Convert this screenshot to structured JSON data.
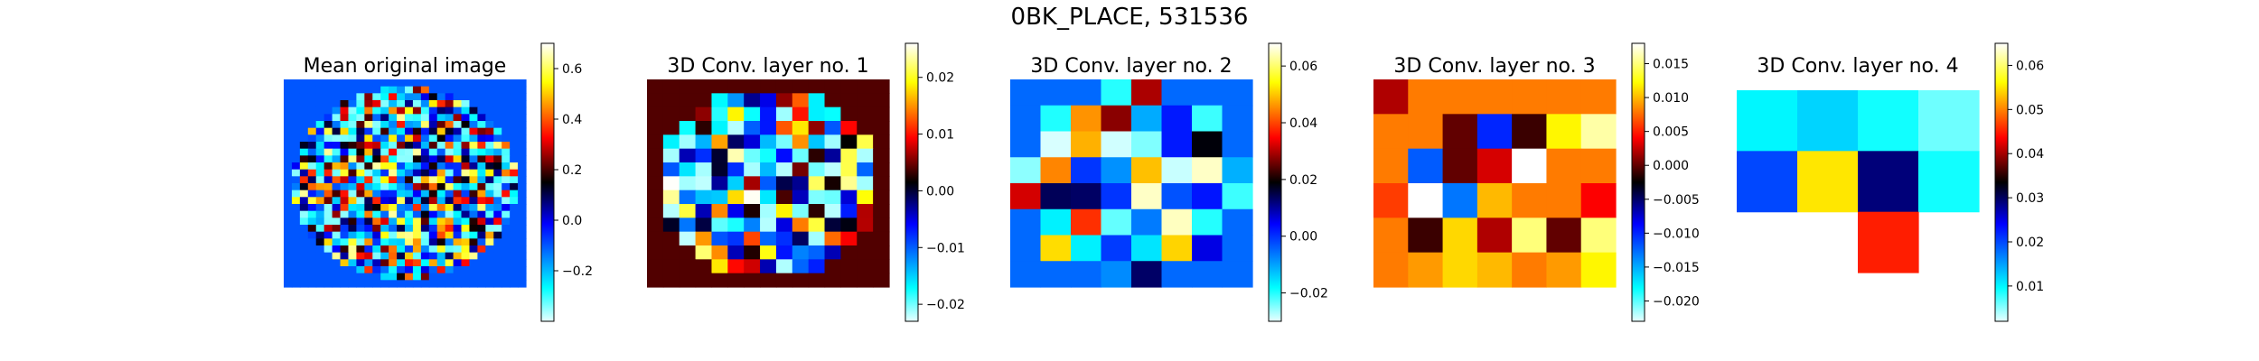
{
  "figure": {
    "suptitle": "0BK_PLACE, 531536"
  },
  "colormap": {
    "name": "custom-cyan-blue-black-red-yellow-white",
    "stops": [
      "#e9ffff",
      "#00ffff",
      "#0000ff",
      "#000000",
      "#ff0000",
      "#ffff00",
      "#ffffff"
    ],
    "stop_positions": [
      0,
      0.12,
      0.35,
      0.5,
      0.66,
      0.86,
      1
    ],
    "background_blue": "#0b2ed6"
  },
  "chart_data": [
    {
      "type": "heatmap",
      "title": "Mean original image",
      "colorbar": {
        "ticks": [
          -0.2,
          0.0,
          0.2,
          0.4,
          0.6
        ],
        "tick_labels": [
          "−0.2",
          "0.0",
          "0.2",
          "0.4",
          "0.6"
        ],
        "range": [
          -0.4,
          0.7
        ]
      },
      "grid_note": "circular sampled region, approx. 30x30 cells",
      "grid": {
        "rows": 30,
        "cols": 30,
        "mask": "circle",
        "background_value": -0.1,
        "seed": 11,
        "value_range": [
          -0.35,
          0.65
        ]
      }
    },
    {
      "type": "heatmap",
      "title": "3D Conv. layer no. 1",
      "colorbar": {
        "ticks": [
          -0.02,
          -0.01,
          0.0,
          0.01,
          0.02
        ],
        "tick_labels": [
          "−0.02",
          "−0.01",
          "0.00",
          "0.01",
          "0.02"
        ],
        "range": [
          -0.023,
          0.026
        ]
      },
      "grid_note": "circular region, approx. 15x15 cells",
      "grid": {
        "rows": 15,
        "cols": 15,
        "mask": "circle",
        "background_value": 0.004,
        "seed": 23,
        "value_range": [
          -0.022,
          0.026
        ]
      }
    },
    {
      "type": "heatmap",
      "title": "3D Conv. layer no. 2",
      "colorbar": {
        "ticks": [
          -0.02,
          0.0,
          0.02,
          0.04,
          0.06
        ],
        "tick_labels": [
          "−0.02",
          "0.00",
          "0.02",
          "0.04",
          "0.06"
        ],
        "range": [
          -0.03,
          0.068
        ]
      },
      "grid_note": "approx. 8x8 cells",
      "grid": {
        "rows": 8,
        "cols": 8,
        "mask": "circle8",
        "background_value": -0.005,
        "seed": 5,
        "value_range": [
          -0.03,
          0.068
        ]
      }
    },
    {
      "type": "heatmap",
      "title": "3D Conv. layer no. 3",
      "colorbar": {
        "ticks": [
          -0.02,
          -0.015,
          -0.01,
          -0.005,
          0.0,
          0.005,
          0.01,
          0.015
        ],
        "tick_labels": [
          "−0.020",
          "−0.015",
          "−0.010",
          "−0.005",
          "0.000",
          "0.005",
          "0.010",
          "0.015"
        ],
        "range": [
          -0.023,
          0.018
        ]
      },
      "grid_note": "6 rows x 7 cols",
      "values": [
        [
          0.002,
          0.008,
          0.008,
          0.008,
          0.008,
          0.008,
          0.008
        ],
        [
          0.008,
          0.008,
          0.0,
          -0.01,
          -0.001,
          0.012,
          0.016
        ],
        [
          0.008,
          -0.012,
          0.0,
          0.003,
          0.02,
          0.008,
          0.008
        ],
        [
          0.006,
          0.02,
          -0.013,
          0.01,
          0.008,
          0.008,
          0.004
        ],
        [
          0.008,
          -0.001,
          0.011,
          0.002,
          0.015,
          0.0,
          0.015
        ],
        [
          0.008,
          0.009,
          0.011,
          0.01,
          0.008,
          0.009,
          0.012
        ]
      ]
    },
    {
      "type": "heatmap",
      "title": "3D Conv. layer no. 4",
      "colorbar": {
        "ticks": [
          0.01,
          0.02,
          0.03,
          0.04,
          0.05,
          0.06
        ],
        "tick_labels": [
          "0.01",
          "0.02",
          "0.03",
          "0.04",
          "0.05",
          "0.06"
        ],
        "range": [
          0.002,
          0.065
        ]
      },
      "grid_note": "3 rows x 4 cols, null = empty",
      "values": [
        [
          0.01,
          0.012,
          0.009,
          0.006
        ],
        [
          0.02,
          0.055,
          0.029,
          0.009
        ],
        [
          null,
          null,
          0.045,
          null
        ]
      ]
    }
  ]
}
